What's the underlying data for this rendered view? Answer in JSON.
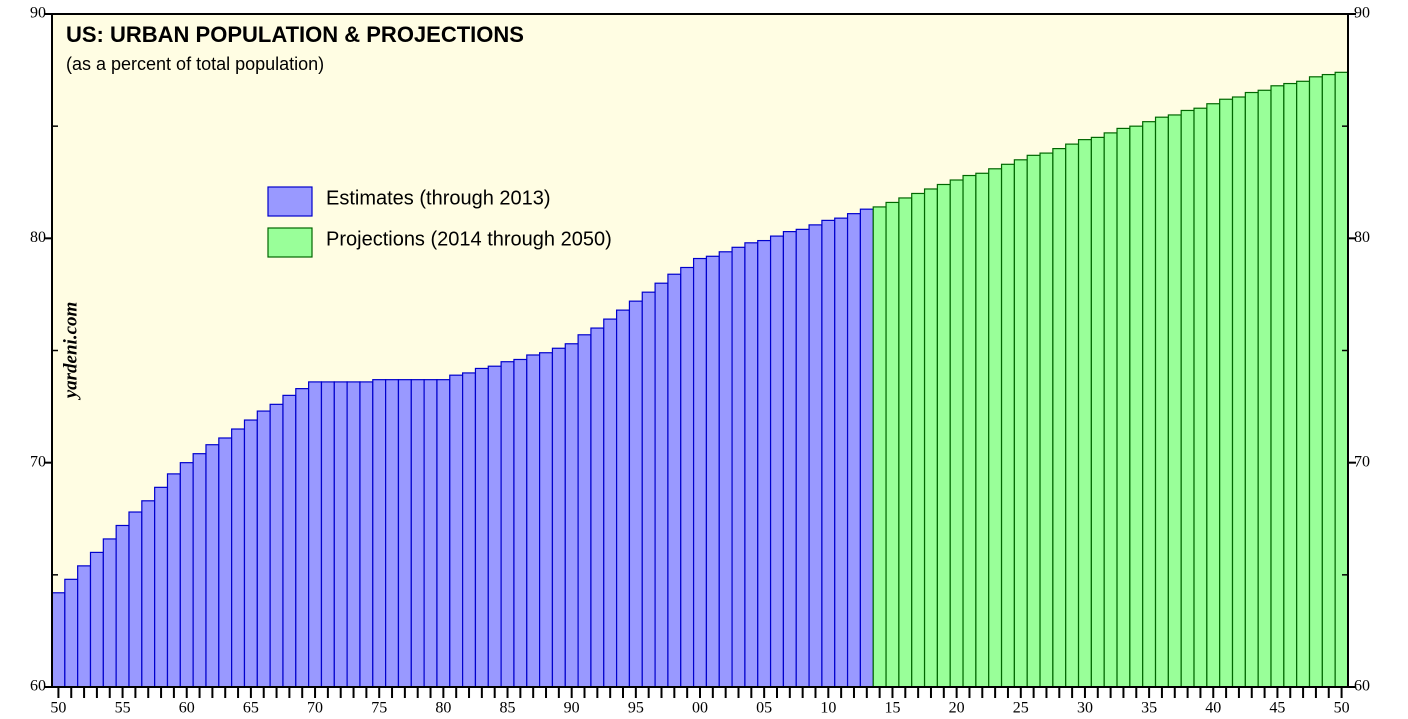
{
  "chart_data": {
    "type": "bar",
    "title": "US: URBAN POPULATION & PROJECTIONS",
    "subtitle": "(as a percent of total population)",
    "watermark": "yardeni.com",
    "categories": [
      "50",
      null,
      null,
      null,
      null,
      "55",
      null,
      null,
      null,
      null,
      "60",
      null,
      null,
      null,
      null,
      "65",
      null,
      null,
      null,
      null,
      "70",
      null,
      null,
      null,
      null,
      "75",
      null,
      null,
      null,
      null,
      "80",
      null,
      null,
      null,
      null,
      "85",
      null,
      null,
      null,
      null,
      "90",
      null,
      null,
      null,
      null,
      "95",
      null,
      null,
      null,
      null,
      "00",
      null,
      null,
      null,
      null,
      "05",
      null,
      null,
      null,
      null,
      "10",
      null,
      null,
      null,
      null,
      "15",
      null,
      null,
      null,
      null,
      "20",
      null,
      null,
      null,
      null,
      "25",
      null,
      null,
      null,
      null,
      "30",
      null,
      null,
      null,
      null,
      "35",
      null,
      null,
      null,
      null,
      "40",
      null,
      null,
      null,
      null,
      "45",
      null,
      null,
      null,
      null,
      "50"
    ],
    "series": [
      {
        "name": "Estimates (through 2013)",
        "color": "#9999ff",
        "edge": "#0000cc",
        "values": [
          64.2,
          64.8,
          65.4,
          66.0,
          66.6,
          67.2,
          67.8,
          68.3,
          68.9,
          69.5,
          70.0,
          70.4,
          70.8,
          71.1,
          71.5,
          71.9,
          72.3,
          72.6,
          73.0,
          73.3,
          73.6,
          73.6,
          73.6,
          73.6,
          73.6,
          73.7,
          73.7,
          73.7,
          73.7,
          73.7,
          73.7,
          73.9,
          74.0,
          74.2,
          74.3,
          74.5,
          74.6,
          74.8,
          74.9,
          75.1,
          75.3,
          75.7,
          76.0,
          76.4,
          76.8,
          77.2,
          77.6,
          78.0,
          78.4,
          78.7,
          79.1,
          79.2,
          79.4,
          79.6,
          79.8,
          79.9,
          80.1,
          80.3,
          80.4,
          80.6,
          80.8,
          80.9,
          81.1,
          81.3,
          null,
          null,
          null,
          null,
          null,
          null,
          null,
          null,
          null,
          null,
          null,
          null,
          null,
          null,
          null,
          null,
          null,
          null,
          null,
          null,
          null,
          null,
          null,
          null,
          null,
          null,
          null,
          null,
          null,
          null,
          null,
          null,
          null,
          null,
          null,
          null,
          null
        ]
      },
      {
        "name": "Projections (2014 through 2050)",
        "color": "#99ff99",
        "edge": "#006600",
        "values": [
          null,
          null,
          null,
          null,
          null,
          null,
          null,
          null,
          null,
          null,
          null,
          null,
          null,
          null,
          null,
          null,
          null,
          null,
          null,
          null,
          null,
          null,
          null,
          null,
          null,
          null,
          null,
          null,
          null,
          null,
          null,
          null,
          null,
          null,
          null,
          null,
          null,
          null,
          null,
          null,
          null,
          null,
          null,
          null,
          null,
          null,
          null,
          null,
          null,
          null,
          null,
          null,
          null,
          null,
          null,
          null,
          null,
          null,
          null,
          null,
          null,
          null,
          null,
          null,
          81.4,
          81.6,
          81.8,
          82.0,
          82.2,
          82.4,
          82.6,
          82.8,
          82.9,
          83.1,
          83.3,
          83.5,
          83.7,
          83.8,
          84.0,
          84.2,
          84.4,
          84.5,
          84.7,
          84.9,
          85.0,
          85.2,
          85.4,
          85.5,
          85.7,
          85.8,
          86.0,
          86.2,
          86.3,
          86.5,
          86.6,
          86.8,
          86.9,
          87.0,
          87.2,
          87.3,
          87.4
        ]
      }
    ],
    "ylim": [
      60,
      90
    ],
    "yticks": [
      60,
      70,
      80,
      90
    ],
    "yminorticks": [
      65,
      75,
      85
    ],
    "background": "#fffde3"
  }
}
